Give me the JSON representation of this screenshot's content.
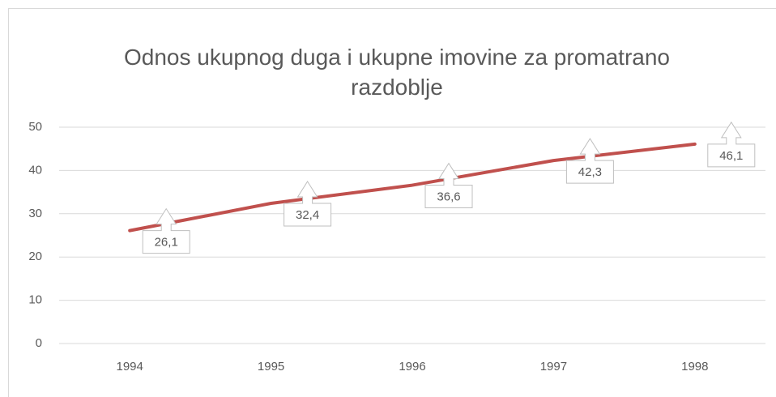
{
  "chart_data": {
    "type": "line",
    "title": "Odnos ukupnog duga i ukupne imovine za promatrano razdoblje",
    "categories": [
      "1994",
      "1995",
      "1996",
      "1997",
      "1998"
    ],
    "series": [
      {
        "name": "Odnos",
        "color": "#c0504d",
        "values": [
          26.1,
          32.4,
          36.6,
          42.3,
          46.1
        ],
        "value_labels": [
          "26,1",
          "32,4",
          "36,6",
          "42,3",
          "46,1"
        ]
      }
    ],
    "ylim": [
      0,
      50
    ],
    "yticks": [
      0,
      10,
      20,
      30,
      40,
      50
    ],
    "grid": true
  }
}
